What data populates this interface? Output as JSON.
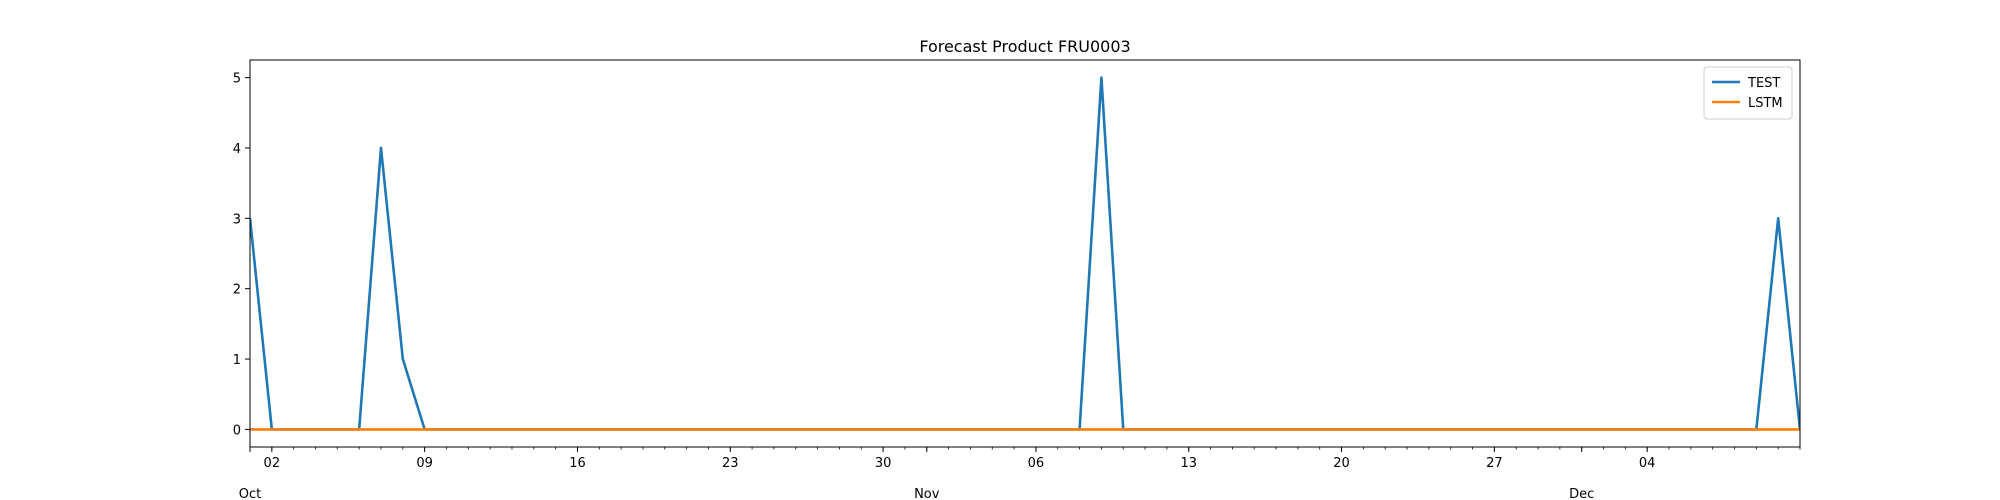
{
  "chart_data": {
    "type": "line",
    "title": "Forecast Product FRU0003",
    "xlabel": "",
    "ylabel": "",
    "x_range": [
      "2023-10-01",
      "2023-12-11"
    ],
    "ylim": [
      -0.25,
      5.25
    ],
    "y_ticks": [
      0,
      1,
      2,
      3,
      4,
      5
    ],
    "x_ticks_minor": [
      {
        "date": "2023-10-02",
        "label": "02"
      },
      {
        "date": "2023-10-09",
        "label": "09"
      },
      {
        "date": "2023-10-16",
        "label": "16"
      },
      {
        "date": "2023-10-23",
        "label": "23"
      },
      {
        "date": "2023-10-30",
        "label": "30"
      },
      {
        "date": "2023-11-06",
        "label": "06"
      },
      {
        "date": "2023-11-13",
        "label": "13"
      },
      {
        "date": "2023-11-20",
        "label": "20"
      },
      {
        "date": "2023-11-27",
        "label": "27"
      },
      {
        "date": "2023-12-04",
        "label": "04"
      }
    ],
    "x_ticks_major": [
      {
        "date": "2023-10-01",
        "label": "Oct"
      },
      {
        "date": "2023-11-01",
        "label": "Nov"
      },
      {
        "date": "2023-12-01",
        "label": "Dec"
      }
    ],
    "grid": false,
    "legend_position": "top-right",
    "series": [
      {
        "name": "TEST",
        "color": "#1f77b4",
        "points": [
          [
            "2023-10-01",
            3
          ],
          [
            "2023-10-02",
            0
          ],
          [
            "2023-10-06",
            0
          ],
          [
            "2023-10-07",
            4
          ],
          [
            "2023-10-08",
            1
          ],
          [
            "2023-10-09",
            0
          ],
          [
            "2023-11-08",
            0
          ],
          [
            "2023-11-09",
            5
          ],
          [
            "2023-11-10",
            0
          ],
          [
            "2023-12-09",
            0
          ],
          [
            "2023-12-10",
            3
          ],
          [
            "2023-12-11",
            0
          ]
        ]
      },
      {
        "name": "LSTM",
        "color": "#ff7f0e",
        "points": [
          [
            "2023-10-01",
            0
          ],
          [
            "2023-12-11",
            0
          ]
        ]
      }
    ]
  }
}
